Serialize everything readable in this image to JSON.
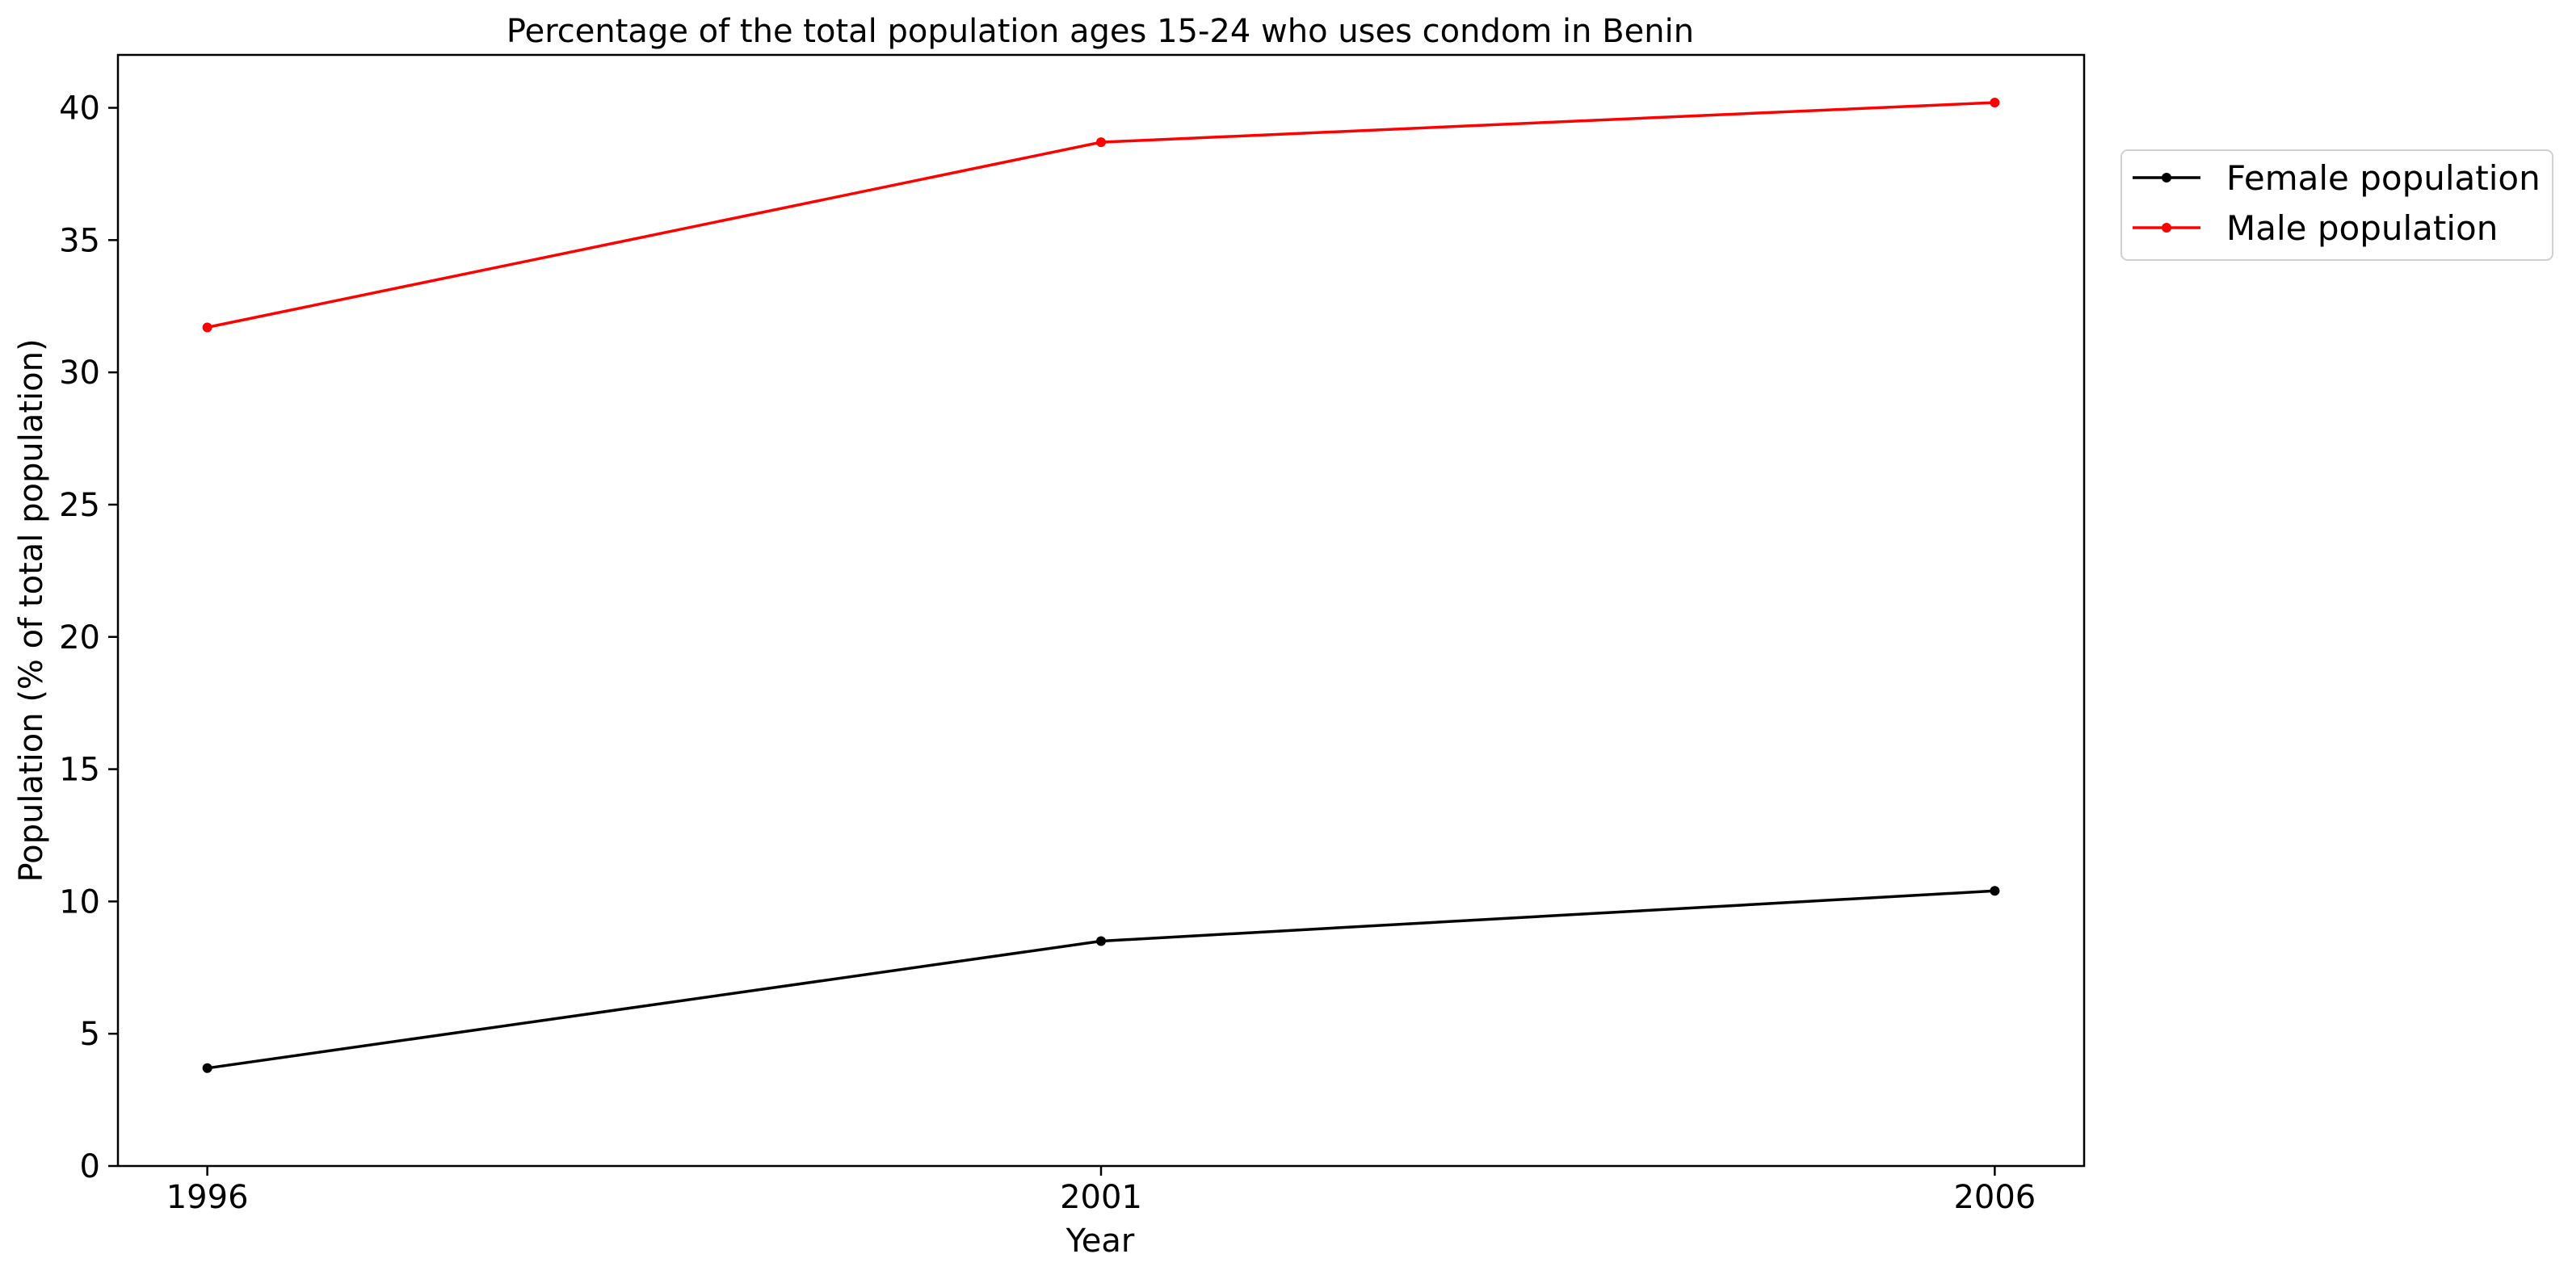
{
  "chart_data": {
    "type": "line",
    "title": "Percentage of the total population ages 15-24 who uses condom in Benin",
    "xlabel": "Year",
    "ylabel": "Population (% of total population)",
    "x": [
      1996,
      2001,
      2006
    ],
    "xticks": [
      "1996",
      "2001",
      "2006"
    ],
    "yticks": [
      "0",
      "5",
      "10",
      "15",
      "20",
      "25",
      "30",
      "35",
      "40"
    ],
    "xlim": [
      1995.5,
      2006.5
    ],
    "ylim": [
      0,
      42
    ],
    "grid": false,
    "legend_position": "upper-right-outside",
    "series": [
      {
        "name": "Female population",
        "color": "#000000",
        "marker": "dot",
        "values": [
          3.7,
          8.5,
          10.4
        ]
      },
      {
        "name": "Male population",
        "color": "#ff0000",
        "marker": "dot",
        "values": [
          31.7,
          38.7,
          40.2
        ]
      }
    ]
  }
}
